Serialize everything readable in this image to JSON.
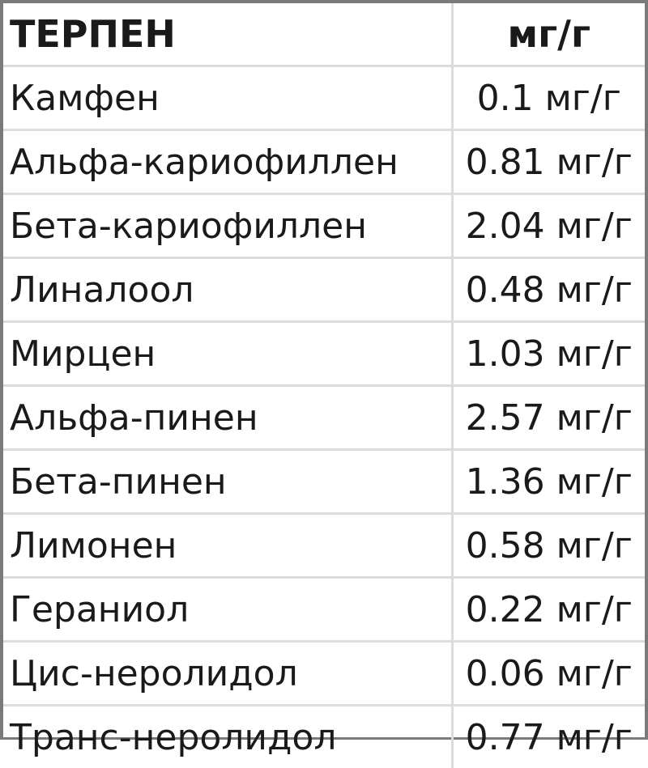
{
  "header": {
    "name": "ТЕРПЕН",
    "unit": "мг/г"
  },
  "rows": [
    {
      "name": "Камфен",
      "value": "0.1 мг/г"
    },
    {
      "name": "Альфа-кариофиллен",
      "value": "0.81 мг/г"
    },
    {
      "name": "Бета-кариофиллен",
      "value": "2.04 мг/г"
    },
    {
      "name": "Линалоол",
      "value": "0.48 мг/г"
    },
    {
      "name": "Мирцен",
      "value": "1.03 мг/г"
    },
    {
      "name": "Альфа-пинен",
      "value": "2.57 мг/г"
    },
    {
      "name": "Бета-пинен",
      "value": "1.36 мг/г"
    },
    {
      "name": "Лимонен",
      "value": "0.58 мг/г"
    },
    {
      "name": "Гераниол",
      "value": "0.22 мг/г"
    },
    {
      "name": "Цис-неролидол",
      "value": "0.06 мг/г"
    },
    {
      "name": "Транс-неролидол",
      "value": "0.77 мг/г"
    }
  ]
}
